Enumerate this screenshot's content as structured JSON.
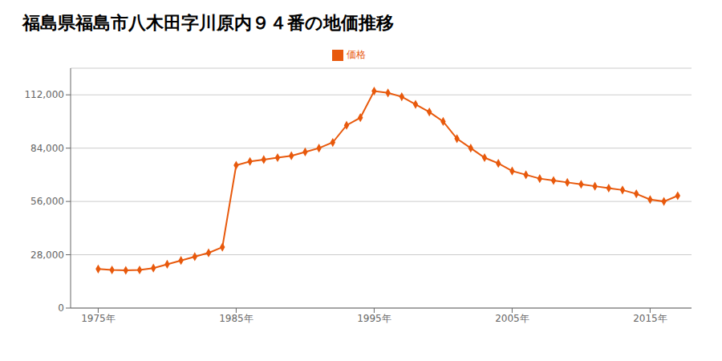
{
  "chart_data": {
    "type": "line",
    "title": "福島県福島市八木田字川原内９４番の地価推移",
    "x": [
      1975,
      1976,
      1977,
      1978,
      1979,
      1980,
      1981,
      1982,
      1983,
      1984,
      1985,
      1986,
      1987,
      1988,
      1989,
      1990,
      1991,
      1992,
      1993,
      1994,
      1995,
      1996,
      1997,
      1998,
      1999,
      2000,
      2001,
      2002,
      2003,
      2004,
      2005,
      2006,
      2007,
      2008,
      2009,
      2010,
      2011,
      2012,
      2013,
      2014,
      2015,
      2016,
      2017
    ],
    "series": [
      {
        "name": "価格",
        "color": "#E8590C",
        "marker": "diamond",
        "values": [
          20500,
          20000,
          19800,
          20000,
          21000,
          23000,
          25000,
          27000,
          29000,
          32000,
          75000,
          77000,
          78000,
          79000,
          80000,
          82000,
          84000,
          87000,
          96000,
          100000,
          114000,
          113000,
          111000,
          107000,
          103000,
          98000,
          89000,
          84000,
          79000,
          76000,
          72000,
          70000,
          68000,
          67000,
          66000,
          65000,
          64000,
          63000,
          62000,
          60000,
          57000,
          56000,
          59000
        ]
      }
    ],
    "xlim": [
      1973,
      2018
    ],
    "xticks": [
      {
        "value": 1975,
        "label": "1975年"
      },
      {
        "value": 1985,
        "label": "1985年"
      },
      {
        "value": 1995,
        "label": "1995年"
      },
      {
        "value": 2005,
        "label": "2005年"
      },
      {
        "value": 2015,
        "label": "2015年"
      }
    ],
    "ylim": [
      0,
      126000
    ],
    "yticks": [
      0,
      {
        "value": 28000,
        "label": "28,000"
      },
      {
        "value": 56000,
        "label": "56,000"
      },
      {
        "value": 84000,
        "label": "84,000"
      },
      {
        "value": 112000,
        "label": "112,000"
      }
    ],
    "grid": "y",
    "legend": "top"
  }
}
